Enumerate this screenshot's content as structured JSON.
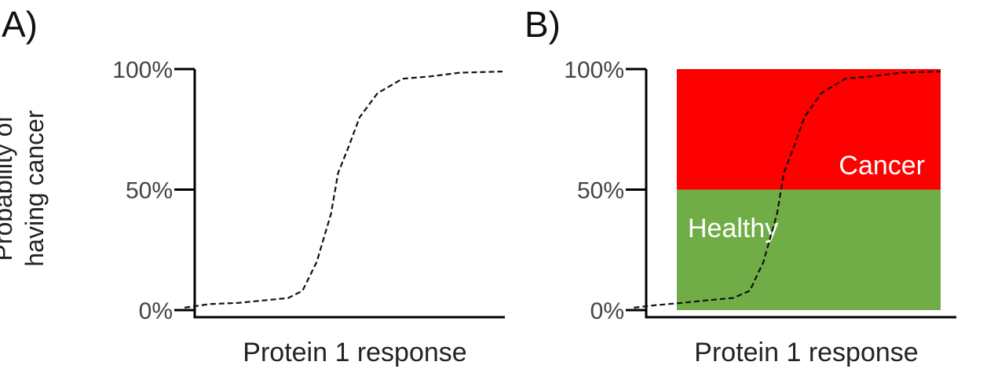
{
  "panels": [
    "A)",
    "B)"
  ],
  "ylabel": [
    "Probability of",
    "having cancer"
  ],
  "chart_data": [
    {
      "type": "line",
      "panel": "A)",
      "xlabel": "Protein 1 response",
      "ylabel": "Probability of having cancer",
      "yticks": [
        "0%",
        "50%",
        "100%"
      ],
      "ylim": [
        0,
        100
      ],
      "xlim": [
        0,
        1
      ],
      "line_style": "dashed",
      "series": [
        {
          "x": [
            0.11,
            0.18,
            0.26,
            0.33,
            0.4,
            0.44,
            0.48,
            0.52,
            0.54,
            0.57,
            0.6,
            0.65,
            0.72,
            0.8,
            0.88,
            1.0
          ],
          "y": [
            1,
            2.5,
            3,
            4,
            5,
            8,
            20,
            40,
            57,
            68,
            80,
            90,
            96,
            97,
            98.5,
            99
          ]
        }
      ]
    },
    {
      "type": "line",
      "panel": "B)",
      "xlabel": "Protein 1 response",
      "yticks": [
        "0%",
        "50%",
        "100%"
      ],
      "ylim": [
        0,
        100
      ],
      "xlim": [
        0,
        1
      ],
      "line_style": "dashed",
      "regions": [
        {
          "label": "Cancer",
          "y0": 50,
          "y1": 100,
          "color": "#ff0000"
        },
        {
          "label": "Healthy",
          "y0": 0,
          "y1": 50,
          "color": "#70ad47"
        }
      ],
      "series": [
        {
          "x": [
            0.1,
            0.16,
            0.24,
            0.31,
            0.39,
            0.44,
            0.48,
            0.52,
            0.54,
            0.57,
            0.6,
            0.65,
            0.72,
            0.8,
            0.88,
            1.0
          ],
          "y": [
            1,
            2,
            3,
            4,
            5,
            8,
            20,
            40,
            57,
            68,
            80,
            90,
            96,
            97,
            98.5,
            99
          ]
        }
      ]
    }
  ]
}
